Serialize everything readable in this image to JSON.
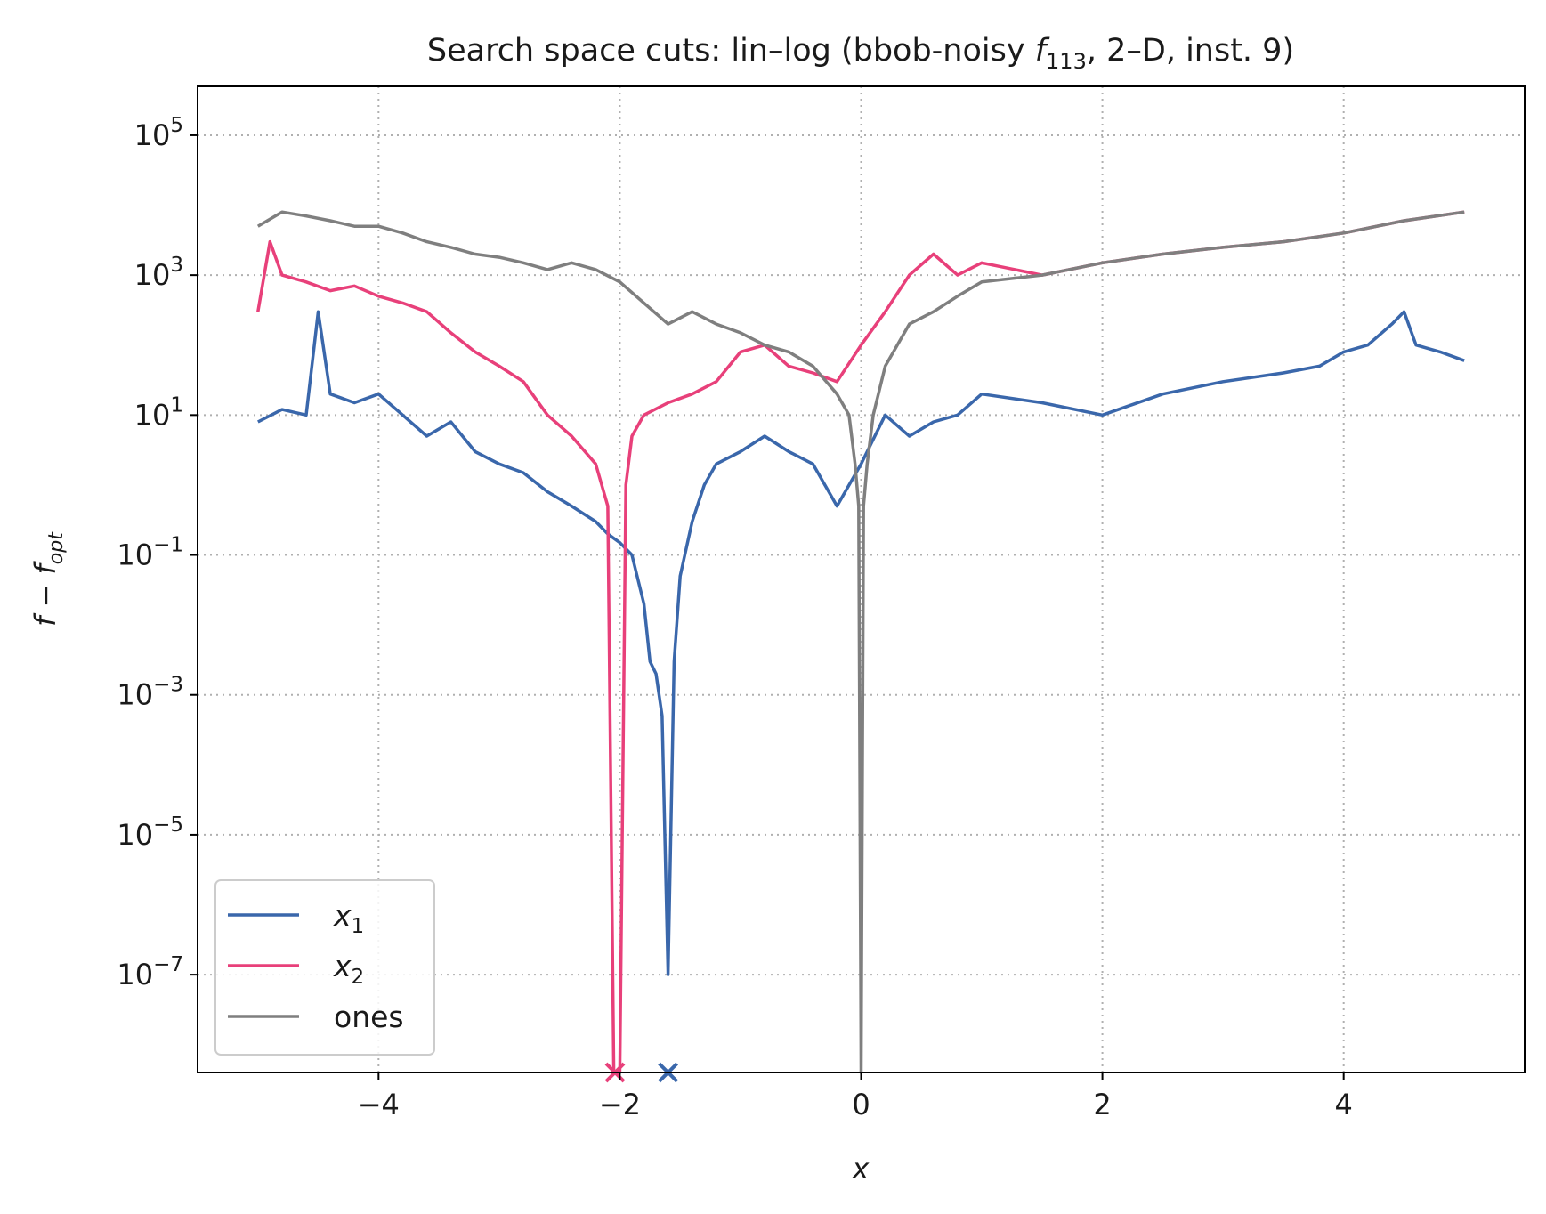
{
  "chart_data": {
    "type": "line",
    "title": {
      "prefix": "Search space cuts: lin–log (bbob-noisy ",
      "func_symbol": "f",
      "func_subscript": "113",
      "suffix": ", 2–D, inst. 9)"
    },
    "xlabel": "x",
    "ylabel": {
      "main": "f − f",
      "subscript": "opt"
    },
    "x_scale": "linear",
    "y_scale": "log",
    "xlim": [
      -5.5,
      5.5
    ],
    "ylim": [
      4e-09,
      500000
    ],
    "x_ticks": [
      {
        "value": -4,
        "label": "−4"
      },
      {
        "value": -2,
        "label": "−2"
      },
      {
        "value": 0,
        "label": "0"
      },
      {
        "value": 2,
        "label": "2"
      },
      {
        "value": 4,
        "label": "4"
      }
    ],
    "y_ticks": [
      {
        "value": 100000,
        "base": "10",
        "exp": "5"
      },
      {
        "value": 1000,
        "base": "10",
        "exp": "3"
      },
      {
        "value": 10,
        "base": "10",
        "exp": "1"
      },
      {
        "value": 0.1,
        "base": "10",
        "exp": "−1"
      },
      {
        "value": 0.001,
        "base": "10",
        "exp": "−3"
      },
      {
        "value": 1e-05,
        "base": "10",
        "exp": "−5"
      },
      {
        "value": 1e-07,
        "base": "10",
        "exp": "−7"
      }
    ],
    "grid": true,
    "legend_position": "lower-left",
    "series": [
      {
        "name": "x",
        "name_subscript": "1",
        "color": "#3a67ab",
        "x": [
          -5.0,
          -4.8,
          -4.6,
          -4.5,
          -4.4,
          -4.2,
          -4.0,
          -3.8,
          -3.6,
          -3.4,
          -3.2,
          -3.0,
          -2.8,
          -2.6,
          -2.4,
          -2.2,
          -2.1,
          -2.0,
          -1.9,
          -1.8,
          -1.75,
          -1.7,
          -1.65,
          -1.6,
          -1.55,
          -1.5,
          -1.4,
          -1.3,
          -1.2,
          -1.0,
          -0.8,
          -0.6,
          -0.4,
          -0.2,
          0.0,
          0.2,
          0.4,
          0.6,
          0.8,
          1.0,
          1.5,
          2.0,
          2.5,
          3.0,
          3.5,
          3.8,
          4.0,
          4.2,
          4.4,
          4.5,
          4.6,
          4.8,
          5.0
        ],
        "y": [
          8,
          12,
          10,
          300,
          20,
          15,
          20,
          10,
          5,
          8,
          3,
          2,
          1.5,
          0.8,
          0.5,
          0.3,
          0.2,
          0.15,
          0.1,
          0.02,
          0.003,
          0.002,
          0.0005,
          1e-07,
          0.003,
          0.05,
          0.3,
          1,
          2,
          3,
          5,
          3,
          2,
          0.5,
          2,
          10,
          5,
          8,
          10,
          20,
          15,
          10,
          20,
          30,
          40,
          50,
          80,
          100,
          200,
          300,
          100,
          80,
          60
        ]
      },
      {
        "name": "x",
        "name_subscript": "2",
        "color": "#e8407a",
        "x": [
          -5.0,
          -4.9,
          -4.8,
          -4.6,
          -4.4,
          -4.2,
          -4.0,
          -3.8,
          -3.6,
          -3.4,
          -3.2,
          -3.0,
          -2.8,
          -2.6,
          -2.4,
          -2.2,
          -2.1,
          -2.05,
          -2.0,
          -1.95,
          -1.9,
          -1.8,
          -1.6,
          -1.4,
          -1.2,
          -1.0,
          -0.8,
          -0.6,
          -0.4,
          -0.2,
          0.0,
          0.2,
          0.4,
          0.6,
          0.8,
          1.0,
          1.5,
          2.0,
          2.5,
          3.0,
          3.5,
          4.0,
          4.5,
          5.0
        ],
        "y": [
          300,
          3000,
          1000,
          800,
          600,
          700,
          500,
          400,
          300,
          150,
          80,
          50,
          30,
          10,
          5,
          2,
          0.5,
          4e-09,
          4e-09,
          1,
          5,
          10,
          15,
          20,
          30,
          80,
          100,
          50,
          40,
          30,
          100,
          300,
          1000,
          2000,
          1000,
          1500,
          1000,
          1500,
          2000,
          2500,
          3000,
          4000,
          6000,
          8000
        ]
      },
      {
        "name": "ones",
        "name_subscript": "",
        "color": "#7f7f7f",
        "x": [
          -5.0,
          -4.8,
          -4.6,
          -4.4,
          -4.2,
          -4.0,
          -3.8,
          -3.6,
          -3.4,
          -3.2,
          -3.0,
          -2.8,
          -2.6,
          -2.4,
          -2.2,
          -2.0,
          -1.8,
          -1.6,
          -1.4,
          -1.2,
          -1.0,
          -0.8,
          -0.6,
          -0.4,
          -0.2,
          -0.1,
          -0.05,
          -0.02,
          0.0,
          0.02,
          0.05,
          0.1,
          0.2,
          0.4,
          0.6,
          0.8,
          1.0,
          1.5,
          2.0,
          2.5,
          3.0,
          3.5,
          4.0,
          4.5,
          5.0
        ],
        "y": [
          5000,
          8000,
          7000,
          6000,
          5000,
          5000,
          4000,
          3000,
          2500,
          2000,
          1800,
          1500,
          1200,
          1500,
          1200,
          800,
          400,
          200,
          300,
          200,
          150,
          100,
          80,
          50,
          20,
          10,
          2,
          0.5,
          4e-09,
          0.5,
          2,
          10,
          50,
          200,
          300,
          500,
          800,
          1000,
          1500,
          2000,
          2500,
          3000,
          4000,
          6000,
          8000
        ]
      }
    ],
    "optimum_markers": [
      {
        "x": -2.04,
        "series": "x2",
        "color": "#e8407a"
      },
      {
        "x": -1.6,
        "series": "x1",
        "color": "#3a67ab"
      }
    ]
  }
}
